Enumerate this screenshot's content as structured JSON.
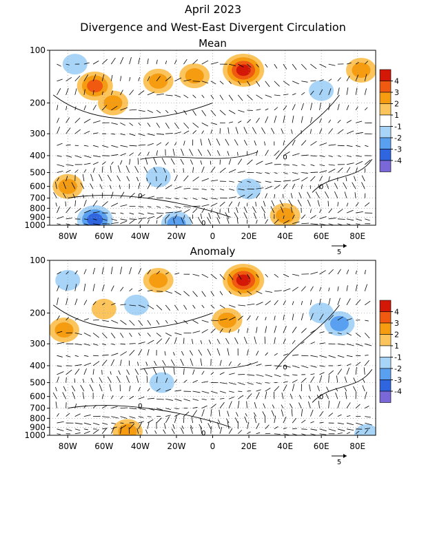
{
  "header": {
    "line1": "April 2023",
    "line2": "Divergence and West-East Divergent Circulation"
  },
  "colors": {
    "neg4": "#7a68d8",
    "neg3": "#2f66e0",
    "neg2": "#5aa0f0",
    "neg1": "#a8d4f8",
    "white": "#ffffff",
    "pos1": "#fbc45c",
    "pos2": "#f59c10",
    "pos3": "#ef5a10",
    "pos4": "#d41808"
  },
  "chart_data": [
    {
      "type": "heatmap",
      "title": "Mean",
      "x_ticks": [
        "80W",
        "60W",
        "40W",
        "20W",
        "0",
        "20E",
        "40E",
        "60E",
        "80E"
      ],
      "x_range": [
        "90W",
        "90E"
      ],
      "y_ticks": [
        "100",
        "200",
        "300",
        "400",
        "500",
        "600",
        "700",
        "800",
        "900",
        "1000"
      ],
      "y_scale": "log-pressure",
      "colorbar": [
        "4",
        "3",
        "2",
        "1",
        "-1",
        "-2",
        "-3",
        "-4"
      ],
      "reference_vector": "5",
      "contour_label": "0",
      "regions": [
        {
          "lon": -76,
          "p": 120,
          "level": -1
        },
        {
          "lon": -65,
          "p": 160,
          "level": 3
        },
        {
          "lon": -55,
          "p": 200,
          "level": 2
        },
        {
          "lon": -30,
          "p": 150,
          "level": 2
        },
        {
          "lon": -10,
          "p": 140,
          "level": 2
        },
        {
          "lon": 17,
          "p": 130,
          "level": 4
        },
        {
          "lon": 60,
          "p": 170,
          "level": -1
        },
        {
          "lon": 82,
          "p": 130,
          "level": 2
        },
        {
          "lon": -80,
          "p": 600,
          "level": 2
        },
        {
          "lon": -30,
          "p": 530,
          "level": -1
        },
        {
          "lon": 20,
          "p": 620,
          "level": -1
        },
        {
          "lon": 40,
          "p": 880,
          "level": 2
        },
        {
          "lon": -65,
          "p": 930,
          "level": -3
        },
        {
          "lon": -20,
          "p": 980,
          "level": -2
        }
      ]
    },
    {
      "type": "heatmap",
      "title": "Anomaly",
      "x_ticks": [
        "80W",
        "60W",
        "40W",
        "20W",
        "0",
        "20E",
        "40E",
        "60E",
        "80E"
      ],
      "x_range": [
        "90W",
        "90E"
      ],
      "y_ticks": [
        "100",
        "200",
        "300",
        "400",
        "500",
        "600",
        "700",
        "800",
        "900",
        "1000"
      ],
      "y_scale": "log-pressure",
      "colorbar": [
        "4",
        "3",
        "2",
        "1",
        "-1",
        "-2",
        "-3",
        "-4"
      ],
      "reference_vector": "5",
      "contour_label": "0",
      "regions": [
        {
          "lon": -80,
          "p": 130,
          "level": -1
        },
        {
          "lon": -60,
          "p": 190,
          "level": 1
        },
        {
          "lon": -42,
          "p": 180,
          "level": -1
        },
        {
          "lon": -30,
          "p": 130,
          "level": 2
        },
        {
          "lon": -82,
          "p": 250,
          "level": 2
        },
        {
          "lon": 17,
          "p": 130,
          "level": 4
        },
        {
          "lon": 8,
          "p": 220,
          "level": 2
        },
        {
          "lon": 60,
          "p": 200,
          "level": -1
        },
        {
          "lon": 70,
          "p": 230,
          "level": -2
        },
        {
          "lon": -28,
          "p": 500,
          "level": -1
        },
        {
          "lon": -47,
          "p": 950,
          "level": 2
        },
        {
          "lon": 85,
          "p": 990,
          "level": -1
        }
      ]
    }
  ]
}
